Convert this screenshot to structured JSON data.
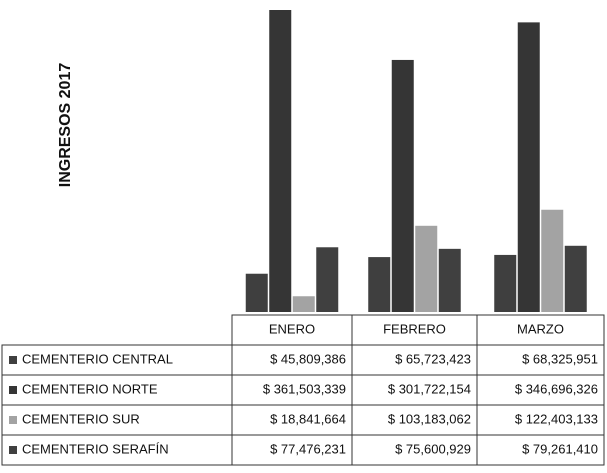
{
  "chart_data": {
    "type": "bar",
    "title": "INGRESOS 2017",
    "categories": [
      "ENERO",
      "FEBRERO",
      "MARZO"
    ],
    "series": [
      {
        "name": "CEMENTERIO CENTRAL",
        "color": "#3f3f3f",
        "values": [
          45809386,
          65723423,
          68325951
        ],
        "value_labels": [
          "$ 45,809,386",
          "$ 65,723,423",
          "$ 68,325,951"
        ]
      },
      {
        "name": "CEMENTERIO NORTE",
        "color": "#353535",
        "values": [
          361503339,
          301722154,
          346696326
        ],
        "value_labels": [
          "$ 361,503,339",
          "$ 301,722,154",
          "$ 346,696,326"
        ]
      },
      {
        "name": "CEMENTERIO SUR",
        "color": "#a3a3a3",
        "values": [
          18841664,
          103183062,
          122403133
        ],
        "value_labels": [
          "$ 18,841,664",
          "$ 103,183,062",
          "$ 122,403,133"
        ]
      },
      {
        "name": "CEMENTERIO SERAFÍN",
        "color": "#404040",
        "values": [
          77476231,
          75600929,
          79261410
        ],
        "value_labels": [
          "$ 77,476,231",
          "$ 75,600,929",
          "$ 79,261,410"
        ]
      }
    ]
  }
}
